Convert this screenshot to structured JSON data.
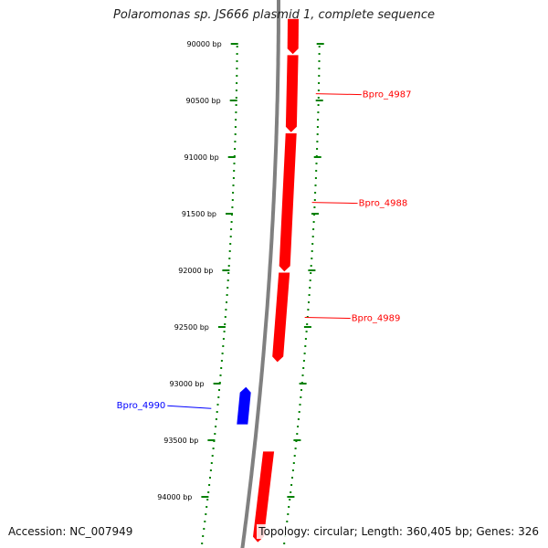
{
  "title": "Polaromonas sp. JS666 plasmid 1, complete sequence",
  "footer": {
    "accession": "Accession: NC_007949",
    "summary": "Topology: circular; Length: 360,405 bp; Genes: 326"
  },
  "colors": {
    "forward_gene": "#ff0000",
    "reverse_gene": "#0000ff",
    "ticks": "#008000",
    "backbone": "#808080"
  },
  "ticks": [
    "90000 bp",
    "90500 bp",
    "91000 bp",
    "91500 bp",
    "92000 bp",
    "92500 bp",
    "93000 bp",
    "93500 bp",
    "94000 bp"
  ],
  "genes": [
    {
      "label": "",
      "strand": "forward",
      "start_bp": 89780,
      "end_bp": 90090
    },
    {
      "label": "Bpro_4987",
      "strand": "forward",
      "start_bp": 90100,
      "end_bp": 90780
    },
    {
      "label": "Bpro_4988",
      "strand": "forward",
      "start_bp": 90790,
      "end_bp": 92010
    },
    {
      "label": "Bpro_4989",
      "strand": "forward",
      "start_bp": 92020,
      "end_bp": 92810
    },
    {
      "label": "Bpro_4990",
      "strand": "reverse",
      "start_bp": 93030,
      "end_bp": 93360
    },
    {
      "label": "",
      "strand": "forward",
      "start_bp": 93600,
      "end_bp": 94400
    }
  ]
}
